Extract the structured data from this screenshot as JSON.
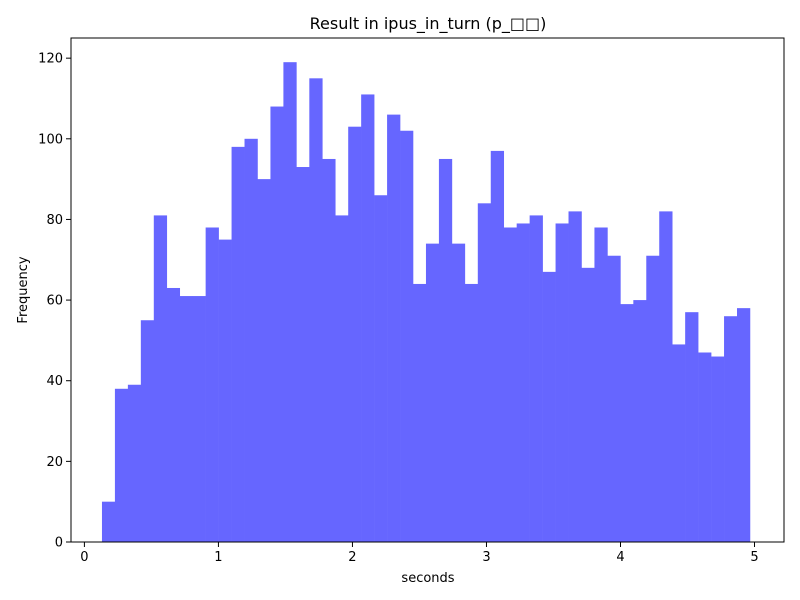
{
  "chart_data": {
    "type": "bar",
    "title": "Result in ipus_in_turn (p_□□)",
    "xlabel": "seconds",
    "ylabel": "Frequency",
    "bar_color": "#6666ff",
    "xlim": [
      -0.1,
      5.22
    ],
    "ylim": [
      0,
      125
    ],
    "x_ticks": [
      0,
      1,
      2,
      3,
      4,
      5
    ],
    "y_ticks": [
      0,
      20,
      40,
      60,
      80,
      100,
      120
    ],
    "bin_width": 0.0967,
    "bin_start": 0.131,
    "values": [
      10,
      38,
      39,
      55,
      81,
      63,
      61,
      61,
      78,
      75,
      98,
      100,
      90,
      108,
      119,
      93,
      115,
      95,
      81,
      103,
      111,
      86,
      106,
      102,
      64,
      74,
      95,
      74,
      64,
      84,
      97,
      78,
      79,
      81,
      67,
      79,
      82,
      68,
      78,
      71,
      59,
      60,
      71,
      82,
      49,
      57,
      47,
      46,
      56,
      58
    ],
    "grid": false,
    "legend": "none"
  }
}
